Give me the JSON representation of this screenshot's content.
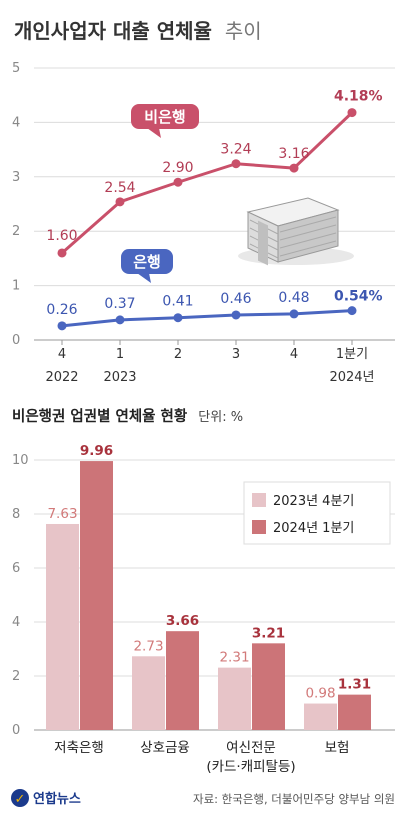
{
  "title": {
    "main": "개인사업자 대출 연체율",
    "light": "추이"
  },
  "chart_data": [
    {
      "type": "line",
      "y_ticks": [
        "0",
        "1",
        "2",
        "3",
        "4",
        "5"
      ],
      "ylim": [
        0,
        5
      ],
      "x_labels": [
        [
          "4",
          "2022"
        ],
        [
          "1",
          "2023"
        ],
        [
          "2",
          ""
        ],
        [
          "3",
          ""
        ],
        [
          "4",
          ""
        ],
        [
          "1분기",
          "2024년"
        ]
      ],
      "series": [
        {
          "name": "비은행",
          "color": "#c9506a",
          "values": [
            1.6,
            2.54,
            2.9,
            3.24,
            3.16,
            4.18
          ],
          "labels": [
            "1.60",
            "2.54",
            "2.90",
            "3.24",
            "3.16",
            "4.18%"
          ]
        },
        {
          "name": "은행",
          "color": "#4a66c0",
          "values": [
            0.26,
            0.37,
            0.41,
            0.46,
            0.48,
            0.54
          ],
          "labels": [
            "0.26",
            "0.37",
            "0.41",
            "0.46",
            "0.48",
            "0.54%"
          ]
        }
      ]
    },
    {
      "type": "bar",
      "title": "비은행권 업권별 연체율 현황",
      "unit": "단위: %",
      "y_ticks": [
        "0",
        "2",
        "4",
        "6",
        "8",
        "10"
      ],
      "ylim": [
        0,
        10
      ],
      "categories": [
        [
          "저축은행",
          ""
        ],
        [
          "상호금융",
          ""
        ],
        [
          "여신전문",
          "(카드·캐피탈등)"
        ],
        [
          "보험",
          ""
        ]
      ],
      "series": [
        {
          "name": "2023년 4분기",
          "color": "#e7c4c8",
          "values": [
            7.63,
            2.73,
            2.31,
            0.98
          ],
          "labels": [
            "7.63",
            "2.73",
            "2.31",
            "0.98"
          ]
        },
        {
          "name": "2024년 1분기",
          "color": "#cc7478",
          "values": [
            9.96,
            3.66,
            3.21,
            1.31
          ],
          "labels": [
            "9.96",
            "3.66",
            "3.21",
            "1.31"
          ]
        }
      ]
    }
  ],
  "footer": {
    "logo": "연합뉴스",
    "source": "자료: 한국은행, 더불어민주당 양부남 의원"
  }
}
